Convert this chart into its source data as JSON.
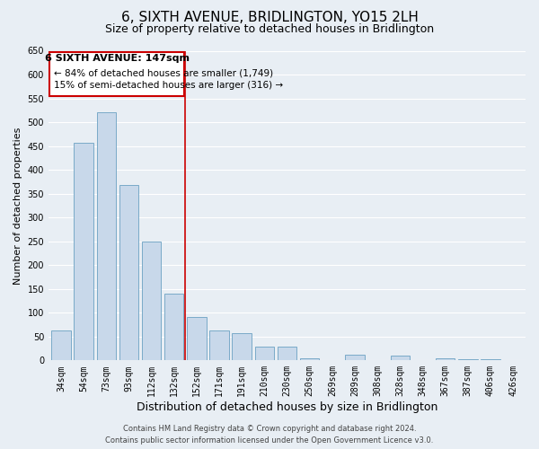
{
  "title": "6, SIXTH AVENUE, BRIDLINGTON, YO15 2LH",
  "subtitle": "Size of property relative to detached houses in Bridlington",
  "xlabel": "Distribution of detached houses by size in Bridlington",
  "ylabel": "Number of detached properties",
  "bar_color": "#c8d8ea",
  "bar_edge_color": "#7aaac8",
  "categories": [
    "34sqm",
    "54sqm",
    "73sqm",
    "93sqm",
    "112sqm",
    "132sqm",
    "152sqm",
    "171sqm",
    "191sqm",
    "210sqm",
    "230sqm",
    "250sqm",
    "269sqm",
    "289sqm",
    "308sqm",
    "328sqm",
    "348sqm",
    "367sqm",
    "387sqm",
    "406sqm",
    "426sqm"
  ],
  "values": [
    62,
    456,
    521,
    369,
    249,
    141,
    92,
    62,
    57,
    28,
    29,
    5,
    0,
    12,
    0,
    10,
    0,
    5,
    3,
    2,
    1
  ],
  "ylim": [
    0,
    650
  ],
  "yticks": [
    0,
    50,
    100,
    150,
    200,
    250,
    300,
    350,
    400,
    450,
    500,
    550,
    600,
    650
  ],
  "vline_pos": 5.5,
  "vline_color": "#cc0000",
  "annotation_title": "6 SIXTH AVENUE: 147sqm",
  "annotation_line1": "← 84% of detached houses are smaller (1,749)",
  "annotation_line2": "15% of semi-detached houses are larger (316) →",
  "annotation_box_color": "#ffffff",
  "annotation_box_edge": "#cc0000",
  "footer_line1": "Contains HM Land Registry data © Crown copyright and database right 2024.",
  "footer_line2": "Contains public sector information licensed under the Open Government Licence v3.0.",
  "background_color": "#e8eef4",
  "grid_color": "#ffffff",
  "title_fontsize": 11,
  "subtitle_fontsize": 9,
  "xlabel_fontsize": 9,
  "ylabel_fontsize": 8,
  "tick_fontsize": 7,
  "footer_fontsize": 6,
  "ann_title_fontsize": 8,
  "ann_text_fontsize": 7.5
}
